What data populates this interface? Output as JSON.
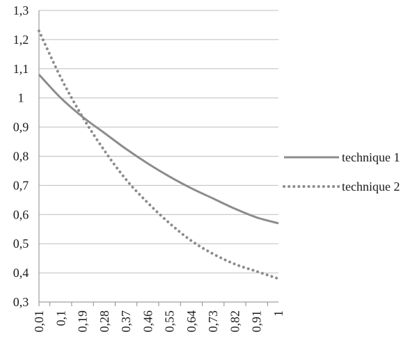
{
  "chart_data": {
    "type": "line",
    "x": [
      "0,01",
      "0,1",
      "0,19",
      "0,28",
      "0,37",
      "0,46",
      "0,55",
      "0,64",
      "0,73",
      "0,82",
      "0,91",
      "1"
    ],
    "x_values": [
      0.01,
      0.1,
      0.19,
      0.28,
      0.37,
      0.46,
      0.55,
      0.64,
      0.73,
      0.82,
      0.91,
      1.0
    ],
    "ylim": [
      0.3,
      1.3
    ],
    "yticks": [
      "0,3",
      "0,4",
      "0,5",
      "0,6",
      "0,7",
      "0,8",
      "0,9",
      "1",
      "1,1",
      "1,2",
      "1,3"
    ],
    "ytick_values": [
      0.3,
      0.4,
      0.5,
      0.6,
      0.7,
      0.8,
      0.9,
      1.0,
      1.1,
      1.2,
      1.3
    ],
    "grid": "horizontal",
    "legend_position": "right",
    "series": [
      {
        "name": "technique 1",
        "style": "solid",
        "color": "#8c8c8c",
        "values": [
          1.08,
          1.0,
          0.935,
          0.88,
          0.825,
          0.775,
          0.73,
          0.69,
          0.655,
          0.62,
          0.59,
          0.57
        ]
      },
      {
        "name": "technique 2",
        "style": "dotted",
        "color": "#8c8c8c",
        "values": [
          1.23,
          1.07,
          0.935,
          0.82,
          0.72,
          0.64,
          0.57,
          0.51,
          0.465,
          0.43,
          0.405,
          0.38
        ]
      }
    ]
  }
}
